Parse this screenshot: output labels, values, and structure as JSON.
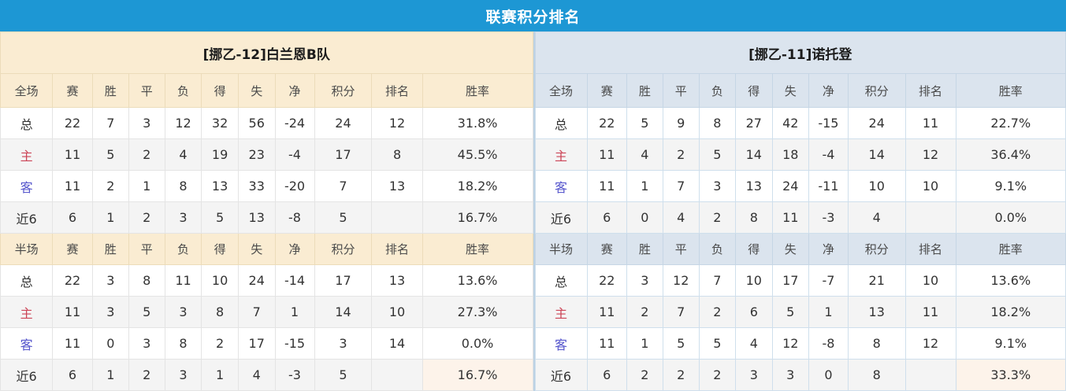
{
  "header": {
    "title": "联赛积分排名"
  },
  "columns": {
    "full": "全场",
    "half": "半场",
    "stat_headers": [
      "赛",
      "胜",
      "平",
      "负",
      "得",
      "失",
      "净",
      "积分",
      "排名",
      "胜率"
    ]
  },
  "colors": {
    "title_bar": "#1d97d4",
    "left_panel_header": "#faecd2",
    "right_panel_header": "#dbe4ee",
    "points_red": "#e6492d",
    "rate_red": "#e64040",
    "rank_blue": "#4381c1",
    "home_label": "#cc4456",
    "away_label": "#5555cc",
    "highlight_peach": "#fdf3ea"
  },
  "teams": [
    {
      "name": "[挪乙-12]白兰恩B队",
      "theme": "cream",
      "sections": [
        {
          "key": "full",
          "rows": [
            {
              "label": "总",
              "type": "total",
              "stats": [
                "22",
                "7",
                "3",
                "12",
                "32",
                "56",
                "-24"
              ],
              "points": "24",
              "rank": "12",
              "rate": "31.8%",
              "rate_highlight": false
            },
            {
              "label": "主",
              "type": "home",
              "stats": [
                "11",
                "5",
                "2",
                "4",
                "19",
                "23",
                "-4"
              ],
              "points": "17",
              "rank": "8",
              "rate": "45.5%",
              "rate_highlight": false
            },
            {
              "label": "客",
              "type": "away",
              "stats": [
                "11",
                "2",
                "1",
                "8",
                "13",
                "33",
                "-20"
              ],
              "points": "7",
              "rank": "13",
              "rate": "18.2%",
              "rate_highlight": false
            },
            {
              "label": "近6",
              "type": "recent",
              "stats": [
                "6",
                "1",
                "2",
                "3",
                "5",
                "13",
                "-8"
              ],
              "points": "5",
              "rank": "",
              "rate": "16.7%",
              "rate_highlight": false
            }
          ]
        },
        {
          "key": "half",
          "rows": [
            {
              "label": "总",
              "type": "total",
              "stats": [
                "22",
                "3",
                "8",
                "11",
                "10",
                "24",
                "-14"
              ],
              "points": "17",
              "rank": "13",
              "rate": "13.6%",
              "rate_highlight": false
            },
            {
              "label": "主",
              "type": "home",
              "stats": [
                "11",
                "3",
                "5",
                "3",
                "8",
                "7",
                "1"
              ],
              "points": "14",
              "rank": "10",
              "rate": "27.3%",
              "rate_highlight": false
            },
            {
              "label": "客",
              "type": "away",
              "stats": [
                "11",
                "0",
                "3",
                "8",
                "2",
                "17",
                "-15"
              ],
              "points": "3",
              "rank": "14",
              "rate": "0.0%",
              "rate_highlight": false
            },
            {
              "label": "近6",
              "type": "recent",
              "stats": [
                "6",
                "1",
                "2",
                "3",
                "1",
                "4",
                "-3"
              ],
              "points": "5",
              "rank": "",
              "rate": "16.7%",
              "rate_highlight": true
            }
          ]
        }
      ]
    },
    {
      "name": "[挪乙-11]诺托登",
      "theme": "blue",
      "sections": [
        {
          "key": "full",
          "rows": [
            {
              "label": "总",
              "type": "total",
              "stats": [
                "22",
                "5",
                "9",
                "8",
                "27",
                "42",
                "-15"
              ],
              "points": "24",
              "rank": "11",
              "rate": "22.7%",
              "rate_highlight": false
            },
            {
              "label": "主",
              "type": "home",
              "stats": [
                "11",
                "4",
                "2",
                "5",
                "14",
                "18",
                "-4"
              ],
              "points": "14",
              "rank": "12",
              "rate": "36.4%",
              "rate_highlight": false
            },
            {
              "label": "客",
              "type": "away",
              "stats": [
                "11",
                "1",
                "7",
                "3",
                "13",
                "24",
                "-11"
              ],
              "points": "10",
              "rank": "10",
              "rate": "9.1%",
              "rate_highlight": false
            },
            {
              "label": "近6",
              "type": "recent",
              "stats": [
                "6",
                "0",
                "4",
                "2",
                "8",
                "11",
                "-3"
              ],
              "points": "4",
              "rank": "",
              "rate": "0.0%",
              "rate_highlight": false
            }
          ]
        },
        {
          "key": "half",
          "rows": [
            {
              "label": "总",
              "type": "total",
              "stats": [
                "22",
                "3",
                "12",
                "7",
                "10",
                "17",
                "-7"
              ],
              "points": "21",
              "rank": "10",
              "rate": "13.6%",
              "rate_highlight": false
            },
            {
              "label": "主",
              "type": "home",
              "stats": [
                "11",
                "2",
                "7",
                "2",
                "6",
                "5",
                "1"
              ],
              "points": "13",
              "rank": "11",
              "rate": "18.2%",
              "rate_highlight": false
            },
            {
              "label": "客",
              "type": "away",
              "stats": [
                "11",
                "1",
                "5",
                "5",
                "4",
                "12",
                "-8"
              ],
              "points": "8",
              "rank": "12",
              "rate": "9.1%",
              "rate_highlight": false
            },
            {
              "label": "近6",
              "type": "recent",
              "stats": [
                "6",
                "2",
                "2",
                "2",
                "3",
                "3",
                "0"
              ],
              "points": "8",
              "rank": "",
              "rate": "33.3%",
              "rate_highlight": true
            }
          ]
        }
      ]
    }
  ]
}
